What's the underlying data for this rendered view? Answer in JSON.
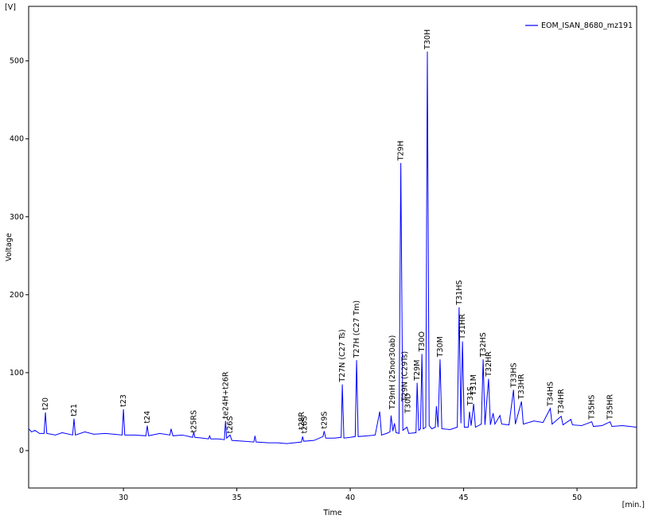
{
  "chart_data": {
    "type": "line",
    "y_unit": "[V]",
    "x_unit": "[min.]",
    "xlabel": "Time",
    "ylabel": "Voltage",
    "xlim": [
      25.82,
      52.63
    ],
    "ylim": [
      -48,
      570
    ],
    "xticks": [
      30,
      35,
      40,
      45,
      50
    ],
    "yticks": [
      0,
      100,
      200,
      300,
      400,
      500
    ],
    "legend": "top-right",
    "series": [
      {
        "name": "EOM_ISAN_8680_mz191",
        "color": "#0000ff",
        "x": [
          25.82,
          25.95,
          26.1,
          26.3,
          26.5,
          26.56,
          26.62,
          27.0,
          27.3,
          27.76,
          27.82,
          27.88,
          28.3,
          28.7,
          29.2,
          29.6,
          29.94,
          30.0,
          30.06,
          30.5,
          30.99,
          31.05,
          31.11,
          31.6,
          32.05,
          32.1,
          32.18,
          32.6,
          33.05,
          33.1,
          33.15,
          33.5,
          33.75,
          33.8,
          33.85,
          34.2,
          34.45,
          34.5,
          34.55,
          34.7,
          34.78,
          35.3,
          35.75,
          35.8,
          35.85,
          36.4,
          36.8,
          37.2,
          37.85,
          37.9,
          37.95,
          38.4,
          38.8,
          38.85,
          38.92,
          39.3,
          39.6,
          39.65,
          39.72,
          40.0,
          40.22,
          40.28,
          40.35,
          40.8,
          41.1,
          41.3,
          41.38,
          41.6,
          41.75,
          41.8,
          41.88,
          41.95,
          42.02,
          42.15,
          42.23,
          42.32,
          42.5,
          42.58,
          42.9,
          42.95,
          43.02,
          43.1,
          43.16,
          43.22,
          43.33,
          43.4,
          43.48,
          43.6,
          43.75,
          43.8,
          43.87,
          43.96,
          44.04,
          44.4,
          44.72,
          44.8,
          44.88,
          44.95,
          45.03,
          45.2,
          45.26,
          45.33,
          45.44,
          45.52,
          45.78,
          45.86,
          45.94,
          46.1,
          46.18,
          46.3,
          46.38,
          46.6,
          46.68,
          47.0,
          47.2,
          47.28,
          47.55,
          47.63,
          48.1,
          48.5,
          48.82,
          48.9,
          49.3,
          49.38,
          49.73,
          49.8,
          50.2,
          50.65,
          50.72,
          51.1,
          51.46,
          51.54,
          52.0,
          52.63
        ],
        "values": [
          28,
          24,
          26,
          22,
          22,
          49,
          22,
          20,
          23,
          20,
          41,
          20,
          24,
          21,
          22,
          21,
          20,
          53,
          20,
          20,
          19,
          32,
          19,
          22,
          20,
          28,
          19,
          20,
          17,
          24,
          17,
          16,
          15,
          19,
          15,
          15,
          14,
          38,
          16,
          20,
          13,
          12,
          11,
          19,
          11,
          10,
          10,
          9,
          11,
          18,
          12,
          13,
          18,
          25,
          16,
          16,
          17,
          85,
          16,
          17,
          18,
          116,
          18,
          19,
          20,
          50,
          20,
          22,
          24,
          45,
          25,
          35,
          23,
          22,
          369,
          26,
          30,
          22,
          23,
          87,
          26,
          28,
          124,
          28,
          30,
          512,
          32,
          28,
          30,
          57,
          30,
          117,
          28,
          27,
          30,
          184,
          35,
          140,
          30,
          30,
          50,
          32,
          60,
          30,
          34,
          117,
          33,
          92,
          33,
          48,
          34,
          45,
          34,
          33,
          78,
          34,
          63,
          34,
          38,
          36,
          54,
          34,
          44,
          33,
          40,
          33,
          32,
          37,
          31,
          32,
          37,
          31,
          32,
          30
        ]
      }
    ],
    "annotations": [
      {
        "text": "t20",
        "x": 26.56,
        "y": 52
      },
      {
        "text": "t21",
        "x": 27.82,
        "y": 44
      },
      {
        "text": "t23",
        "x": 30.0,
        "y": 56
      },
      {
        "text": "t24",
        "x": 31.05,
        "y": 35
      },
      {
        "text": "t25RS",
        "x": 33.1,
        "y": 23
      },
      {
        "text": "te24H+t26R",
        "x": 34.5,
        "y": 41
      },
      {
        "text": "t26S",
        "x": 34.7,
        "y": 22
      },
      {
        "text": "t28R",
        "x": 37.85,
        "y": 27
      },
      {
        "text": "t28S",
        "x": 37.98,
        "y": 22
      },
      {
        "text": "t29S",
        "x": 38.85,
        "y": 28
      },
      {
        "text": "T27N (C27 Ts)",
        "x": 39.65,
        "y": 88
      },
      {
        "text": "T27H (C27 Tm)",
        "x": 40.28,
        "y": 119
      },
      {
        "text": "T29nH (25nor30ab)",
        "x": 41.85,
        "y": 53
      },
      {
        "text": "T29H",
        "x": 42.23,
        "y": 372
      },
      {
        "text": "T29N (C29Ts)",
        "x": 42.4,
        "y": 63
      },
      {
        "text": "T30D",
        "x": 42.55,
        "y": 48
      },
      {
        "text": "T29M",
        "x": 42.95,
        "y": 90
      },
      {
        "text": "T30O",
        "x": 43.16,
        "y": 127
      },
      {
        "text": "T30H",
        "x": 43.4,
        "y": 515
      },
      {
        "text": "T30M",
        "x": 43.96,
        "y": 120
      },
      {
        "text": "T31HS",
        "x": 44.8,
        "y": 187
      },
      {
        "text": "T31HR",
        "x": 44.95,
        "y": 143
      },
      {
        "text": "T31S",
        "x": 45.3,
        "y": 58
      },
      {
        "text": "T31M",
        "x": 45.44,
        "y": 71
      },
      {
        "text": "T32HS",
        "x": 45.86,
        "y": 120
      },
      {
        "text": "T32HR",
        "x": 46.1,
        "y": 95
      },
      {
        "text": "T33HS",
        "x": 47.2,
        "y": 81
      },
      {
        "text": "T33HR",
        "x": 47.55,
        "y": 66
      },
      {
        "text": "T34HS",
        "x": 48.82,
        "y": 57
      },
      {
        "text": "T34HR",
        "x": 49.3,
        "y": 47
      },
      {
        "text": "T35HS",
        "x": 50.65,
        "y": 40
      },
      {
        "text": "T35HR",
        "x": 51.46,
        "y": 40
      }
    ]
  }
}
